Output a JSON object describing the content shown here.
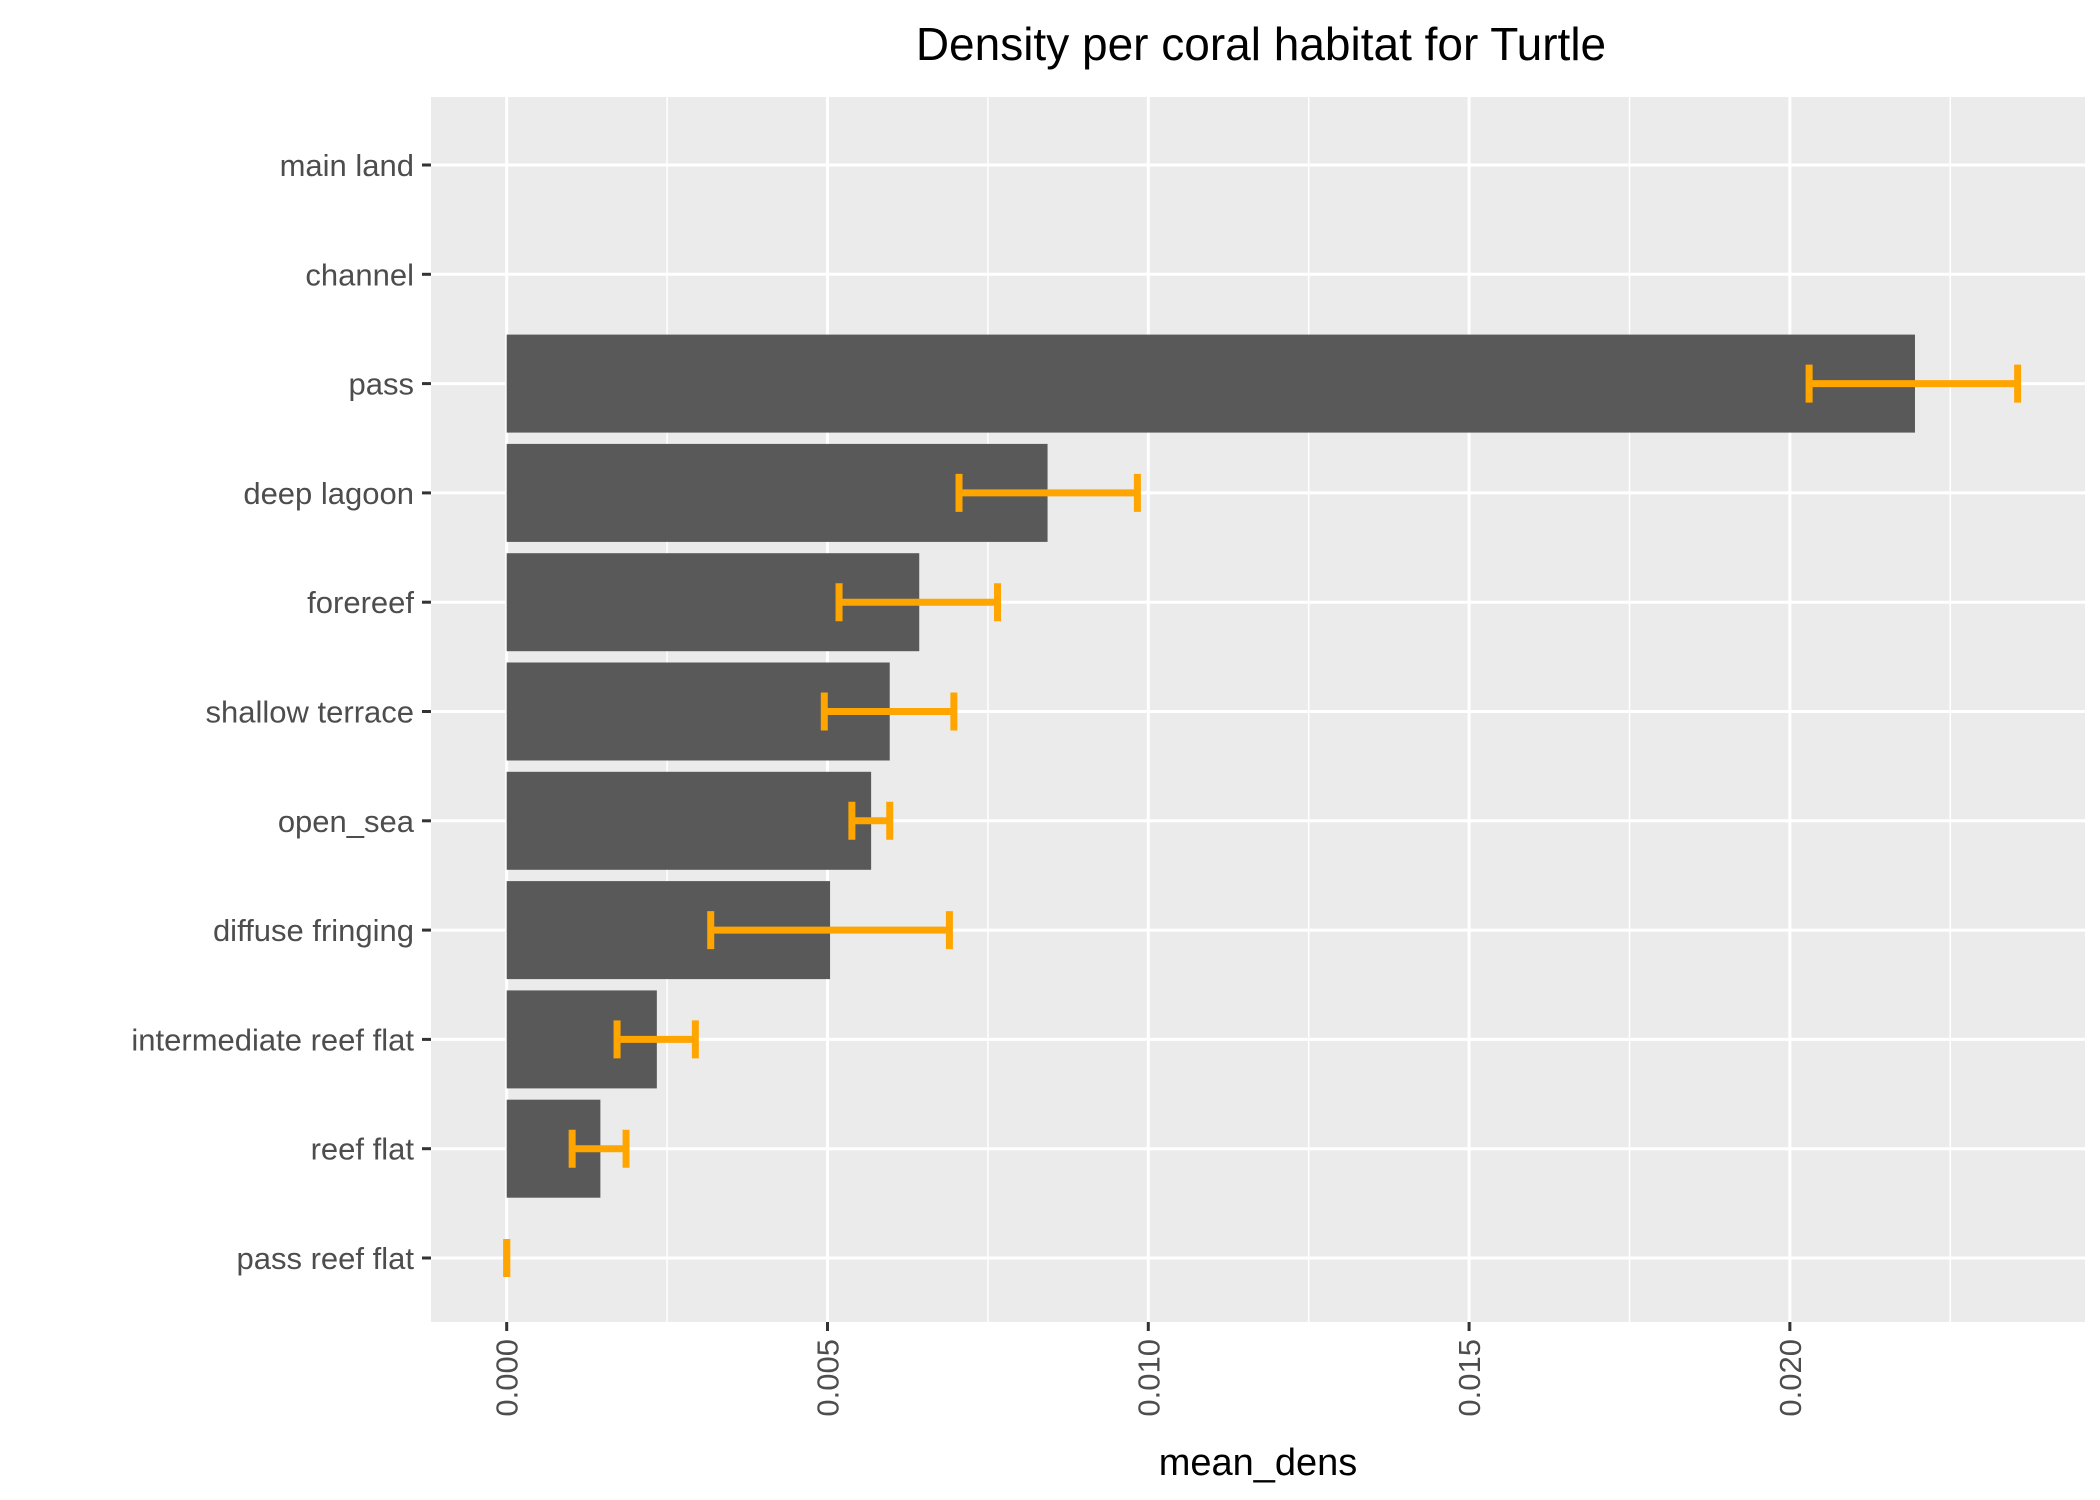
{
  "chart_data": {
    "type": "bar",
    "orientation": "horizontal",
    "title": "Density per coral habitat for Turtle",
    "xlabel": "mean_dens",
    "ylabel": "",
    "xlim": [
      -0.00118,
      0.0246
    ],
    "xticks": [
      "0.000",
      "0.005",
      "0.010",
      "0.015",
      "0.020"
    ],
    "xtick_values": [
      0,
      0.005,
      0.01,
      0.015,
      0.02
    ],
    "categories": [
      "main land",
      "channel",
      "pass",
      "deep lagoon",
      "forereef",
      "shallow terrace",
      "open_sea",
      "diffuse fringing",
      "intermediate reef flat",
      "reef flat",
      "pass reef flat"
    ],
    "values": [
      null,
      null,
      0.02195,
      0.00843,
      0.00643,
      0.00597,
      0.00568,
      0.00504,
      0.00234,
      0.00146,
      0
    ],
    "error_low": [
      null,
      null,
      0.0203,
      0.00705,
      0.00518,
      0.00495,
      0.00538,
      0.00318,
      0.00172,
      0.00102,
      0
    ],
    "error_high": [
      null,
      null,
      0.02355,
      0.00983,
      0.00765,
      0.00697,
      0.00597,
      0.0069,
      0.00294,
      0.00186,
      0
    ],
    "grid": true,
    "legend": "none",
    "colors": {
      "bar": "#595959",
      "error_bar": "#FFA500",
      "panel_background": "#EBEBEB",
      "grid": "#FFFFFF"
    }
  }
}
